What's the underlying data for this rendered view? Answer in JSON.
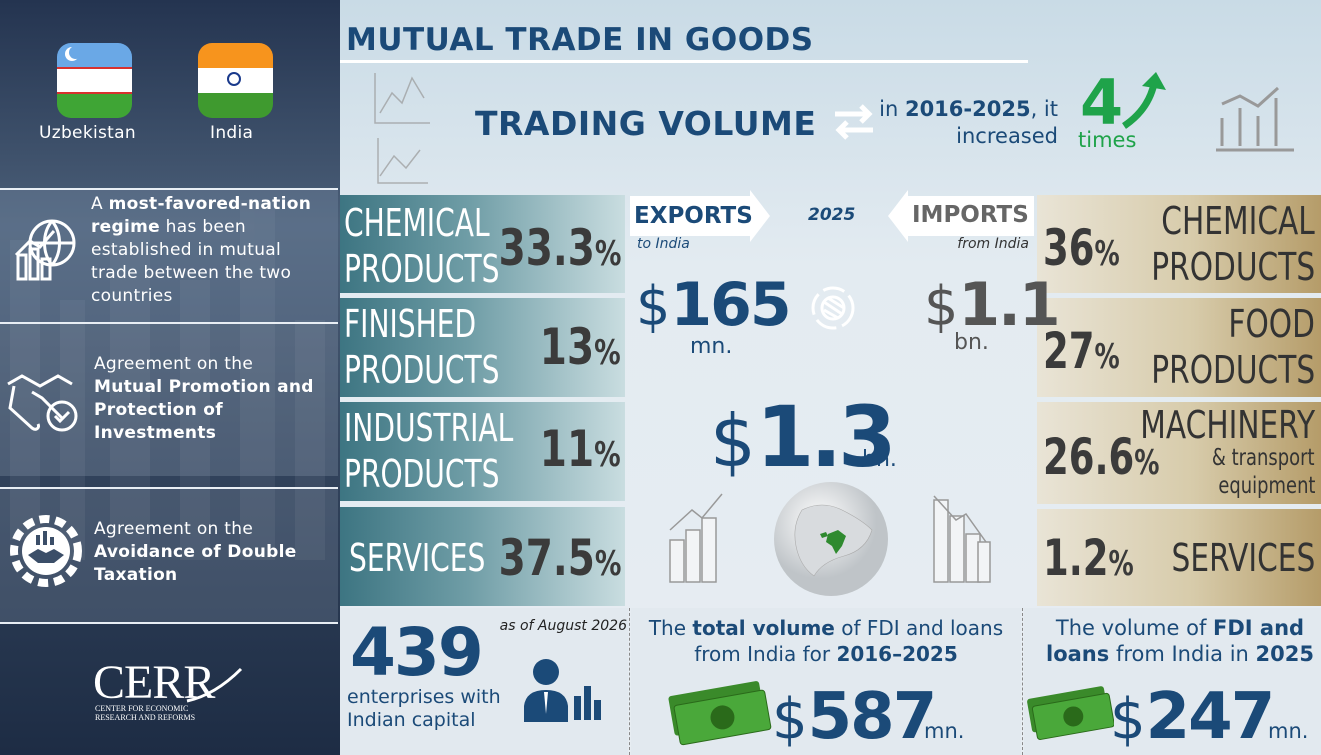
{
  "flags": [
    "Uzbekistan",
    "India"
  ],
  "agreements": [
    [
      "A ",
      "most-favored-nation regime",
      " has been established in mutual trade between the two countries"
    ],
    [
      "Agreement on the ",
      "Mutual Promotion and Protection of Investments"
    ],
    [
      "Agreement on the ",
      "Avoidance of Double Taxation"
    ]
  ],
  "logo": {
    "name": "CERR",
    "subtitle": [
      "CENTER FOR ECONOMIC",
      "RESEARCH AND REFORMS"
    ]
  },
  "header": {
    "title": "MUTUAL TRADE IN GOODS",
    "trading_volume": "TRADING VOLUME",
    "increase": [
      "in ",
      "2016-2025",
      ", it",
      "increased"
    ],
    "factor": "4",
    "factor_unit": "times"
  },
  "year": "2025",
  "exports": {
    "label": "EXPORTS",
    "sub": "to India",
    "currency": "$",
    "amount": "165",
    "unit": "mn.",
    "items": [
      {
        "name": [
          "CHEMICAL",
          "PRODUCTS"
        ],
        "share": "33.3",
        "unit": "%"
      },
      {
        "name": [
          "FINISHED",
          "PRODUCTS"
        ],
        "share": "13",
        "unit": "%"
      },
      {
        "name": [
          "INDUSTRIAL",
          "PRODUCTS"
        ],
        "share": "11",
        "unit": "%"
      },
      {
        "name": [
          "SERVICES"
        ],
        "share": "37.5",
        "unit": "%"
      }
    ]
  },
  "imports": {
    "label": "IMPORTS",
    "sub": "from India",
    "currency": "$",
    "amount": "1.1",
    "unit": "bn.",
    "items": [
      {
        "name": [
          "CHEMICAL",
          "PRODUCTS"
        ],
        "share": "36",
        "unit": "%"
      },
      {
        "name": [
          "FOOD",
          "PRODUCTS"
        ],
        "share": "27",
        "unit": "%"
      },
      {
        "name": [
          "MACHINERY",
          "& transport",
          "equipment"
        ],
        "share": "26.6",
        "unit": "%"
      },
      {
        "name": [
          "SERVICES"
        ],
        "share": "1.2",
        "unit": "%"
      }
    ]
  },
  "total": {
    "currency": "$",
    "amount": "1.3",
    "unit": "bn."
  },
  "enterprises": {
    "note": "as of August 2026",
    "count": "439",
    "text": [
      "enterprises with",
      "Indian capital"
    ]
  },
  "fdi_total": {
    "text": [
      "The ",
      "total volume",
      " of FDI and loans",
      "from India for ",
      "2016–2025"
    ],
    "currency": "$",
    "amount": "587",
    "unit": "mn."
  },
  "fdi_2025": {
    "text": [
      "The volume of ",
      "FDI and",
      "loans",
      " from India in ",
      "2025"
    ],
    "currency": "$",
    "amount": "247",
    "unit": "mn."
  }
}
